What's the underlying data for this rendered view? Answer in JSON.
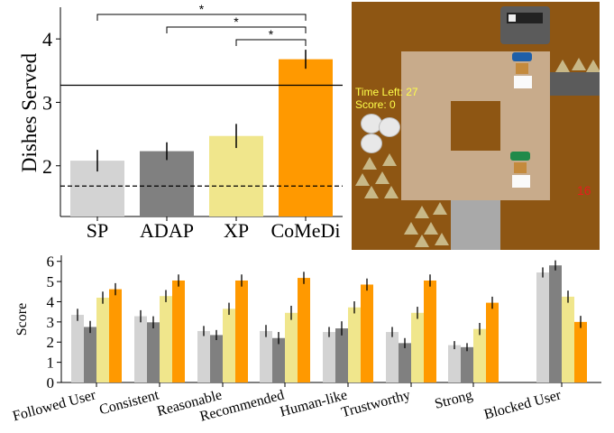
{
  "chart_data": [
    {
      "type": "bar",
      "ylabel": "Dishes Served",
      "categories": [
        "SP",
        "ADAP",
        "XP",
        "CoMeDi"
      ],
      "values": [
        2.08,
        2.23,
        2.47,
        3.68
      ],
      "errors": [
        0.17,
        0.14,
        0.19,
        0.15
      ],
      "colors": [
        "#d3d3d3",
        "#808080",
        "#f0e68c",
        "#ff9900"
      ],
      "ylim": [
        1.2,
        4.5
      ],
      "yticks": [
        2,
        3,
        4
      ],
      "hlines": [
        {
          "value": 3.27,
          "style": "solid"
        },
        {
          "value": 1.68,
          "style": "dashed"
        }
      ],
      "significance": [
        {
          "from": 0,
          "to": 3,
          "label": "*"
        },
        {
          "from": 1,
          "to": 3,
          "label": "*"
        },
        {
          "from": 2,
          "to": 3,
          "label": "*"
        }
      ]
    },
    {
      "type": "bar",
      "ylabel": "Score",
      "categories": [
        "Followed User",
        "Consistent",
        "Reasonable",
        "Recommended",
        "Human-like",
        "Trustworthy",
        "Strong",
        "Blocked User"
      ],
      "series": [
        {
          "name": "SP",
          "color": "#d3d3d3",
          "values": [
            3.35,
            3.28,
            2.55,
            2.55,
            2.5,
            2.5,
            1.85,
            5.45
          ],
          "errors": [
            0.3,
            0.3,
            0.25,
            0.3,
            0.25,
            0.25,
            0.2,
            0.25
          ]
        },
        {
          "name": "ADAP",
          "color": "#808080",
          "values": [
            2.75,
            2.98,
            2.35,
            2.2,
            2.68,
            1.95,
            1.75,
            5.8
          ],
          "errors": [
            0.3,
            0.3,
            0.25,
            0.3,
            0.35,
            0.25,
            0.2,
            0.25
          ]
        },
        {
          "name": "XP",
          "color": "#f0e68c",
          "values": [
            4.2,
            4.28,
            3.65,
            3.45,
            3.72,
            3.45,
            2.65,
            4.25
          ],
          "errors": [
            0.3,
            0.3,
            0.3,
            0.35,
            0.3,
            0.3,
            0.3,
            0.3
          ]
        },
        {
          "name": "CoMeDi",
          "color": "#ff9900",
          "values": [
            4.62,
            5.05,
            5.05,
            5.18,
            4.85,
            5.05,
            3.95,
            3.0
          ],
          "errors": [
            0.3,
            0.3,
            0.3,
            0.3,
            0.3,
            0.3,
            0.3,
            0.3
          ]
        }
      ],
      "ylim": [
        0,
        6.3
      ],
      "yticks": [
        0,
        1,
        2,
        3,
        4,
        5,
        6
      ]
    }
  ],
  "game": {
    "time_left": "Time Left: 27",
    "score": "Score: 0",
    "order_count": "16",
    "chef1_hat_color": "#1e5fa8",
    "chef2_hat_color": "#1f8a4a"
  }
}
